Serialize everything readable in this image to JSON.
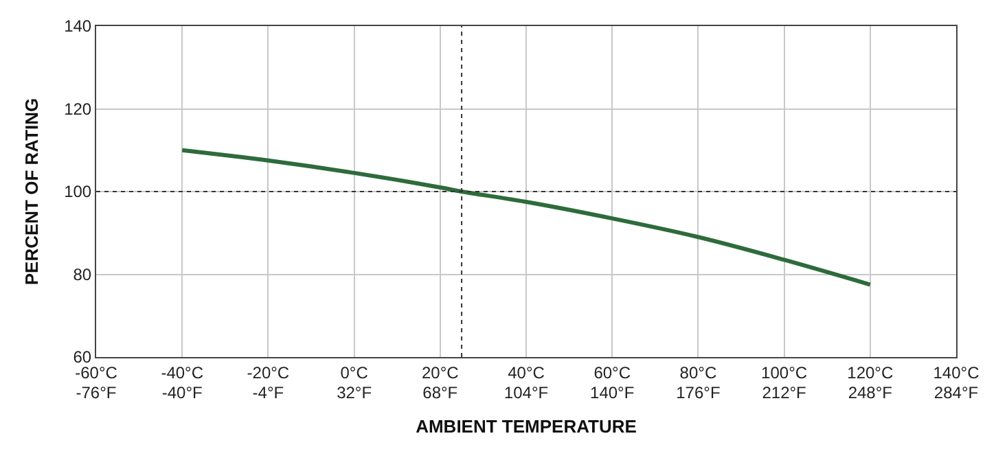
{
  "chart_data": {
    "type": "line",
    "xlabel": "AMBIENT TEMPERATURE",
    "ylabel": "PERCENT OF RATING",
    "x": [
      -40,
      -20,
      0,
      20,
      25,
      40,
      60,
      80,
      100,
      120
    ],
    "series": [
      {
        "color": "#2e6b3c",
        "values": [
          110,
          107.5,
          104.5,
          101,
          100,
          97.5,
          93.5,
          89,
          83.5,
          77.5
        ]
      }
    ],
    "xlim": [
      -60,
      140
    ],
    "ylim": [
      60,
      140
    ],
    "xticks": [
      {
        "value": -60,
        "label": "-60°C"
      },
      {
        "value": -40,
        "label": "-40°C"
      },
      {
        "value": -20,
        "label": "-20°C"
      },
      {
        "value": 0,
        "label": "0°C"
      },
      {
        "value": 20,
        "label": "20°C"
      },
      {
        "value": 40,
        "label": "40°C"
      },
      {
        "value": 60,
        "label": "60°C"
      },
      {
        "value": 80,
        "label": "80°C"
      },
      {
        "value": 100,
        "label": "100°C"
      },
      {
        "value": 120,
        "label": "120°C"
      },
      {
        "value": 140,
        "label": "140°C"
      }
    ],
    "x2lim": [
      -76,
      284
    ],
    "x2ticks": [
      {
        "value": -76,
        "label": "-76°F"
      },
      {
        "value": -40,
        "label": "-40°F"
      },
      {
        "value": -4,
        "label": "-4°F"
      },
      {
        "value": 32,
        "label": "32°F"
      },
      {
        "value": 68,
        "label": "68°F"
      },
      {
        "value": 104,
        "label": "104°F"
      },
      {
        "value": 140,
        "label": "140°F"
      },
      {
        "value": 176,
        "label": "176°F"
      },
      {
        "value": 212,
        "label": "212°F"
      },
      {
        "value": 248,
        "label": "248°F"
      },
      {
        "value": 284,
        "label": "284°F"
      }
    ],
    "yticks": [
      60,
      80,
      100,
      120,
      140
    ],
    "grid": true,
    "marker": "none",
    "line_style": "solid",
    "ref_lines": [
      {
        "axis": "x",
        "value": 25,
        "label": null,
        "line_style": "dotted"
      },
      {
        "axis": "y",
        "value": 100,
        "label": null,
        "line_style": "dotted"
      }
    ]
  }
}
